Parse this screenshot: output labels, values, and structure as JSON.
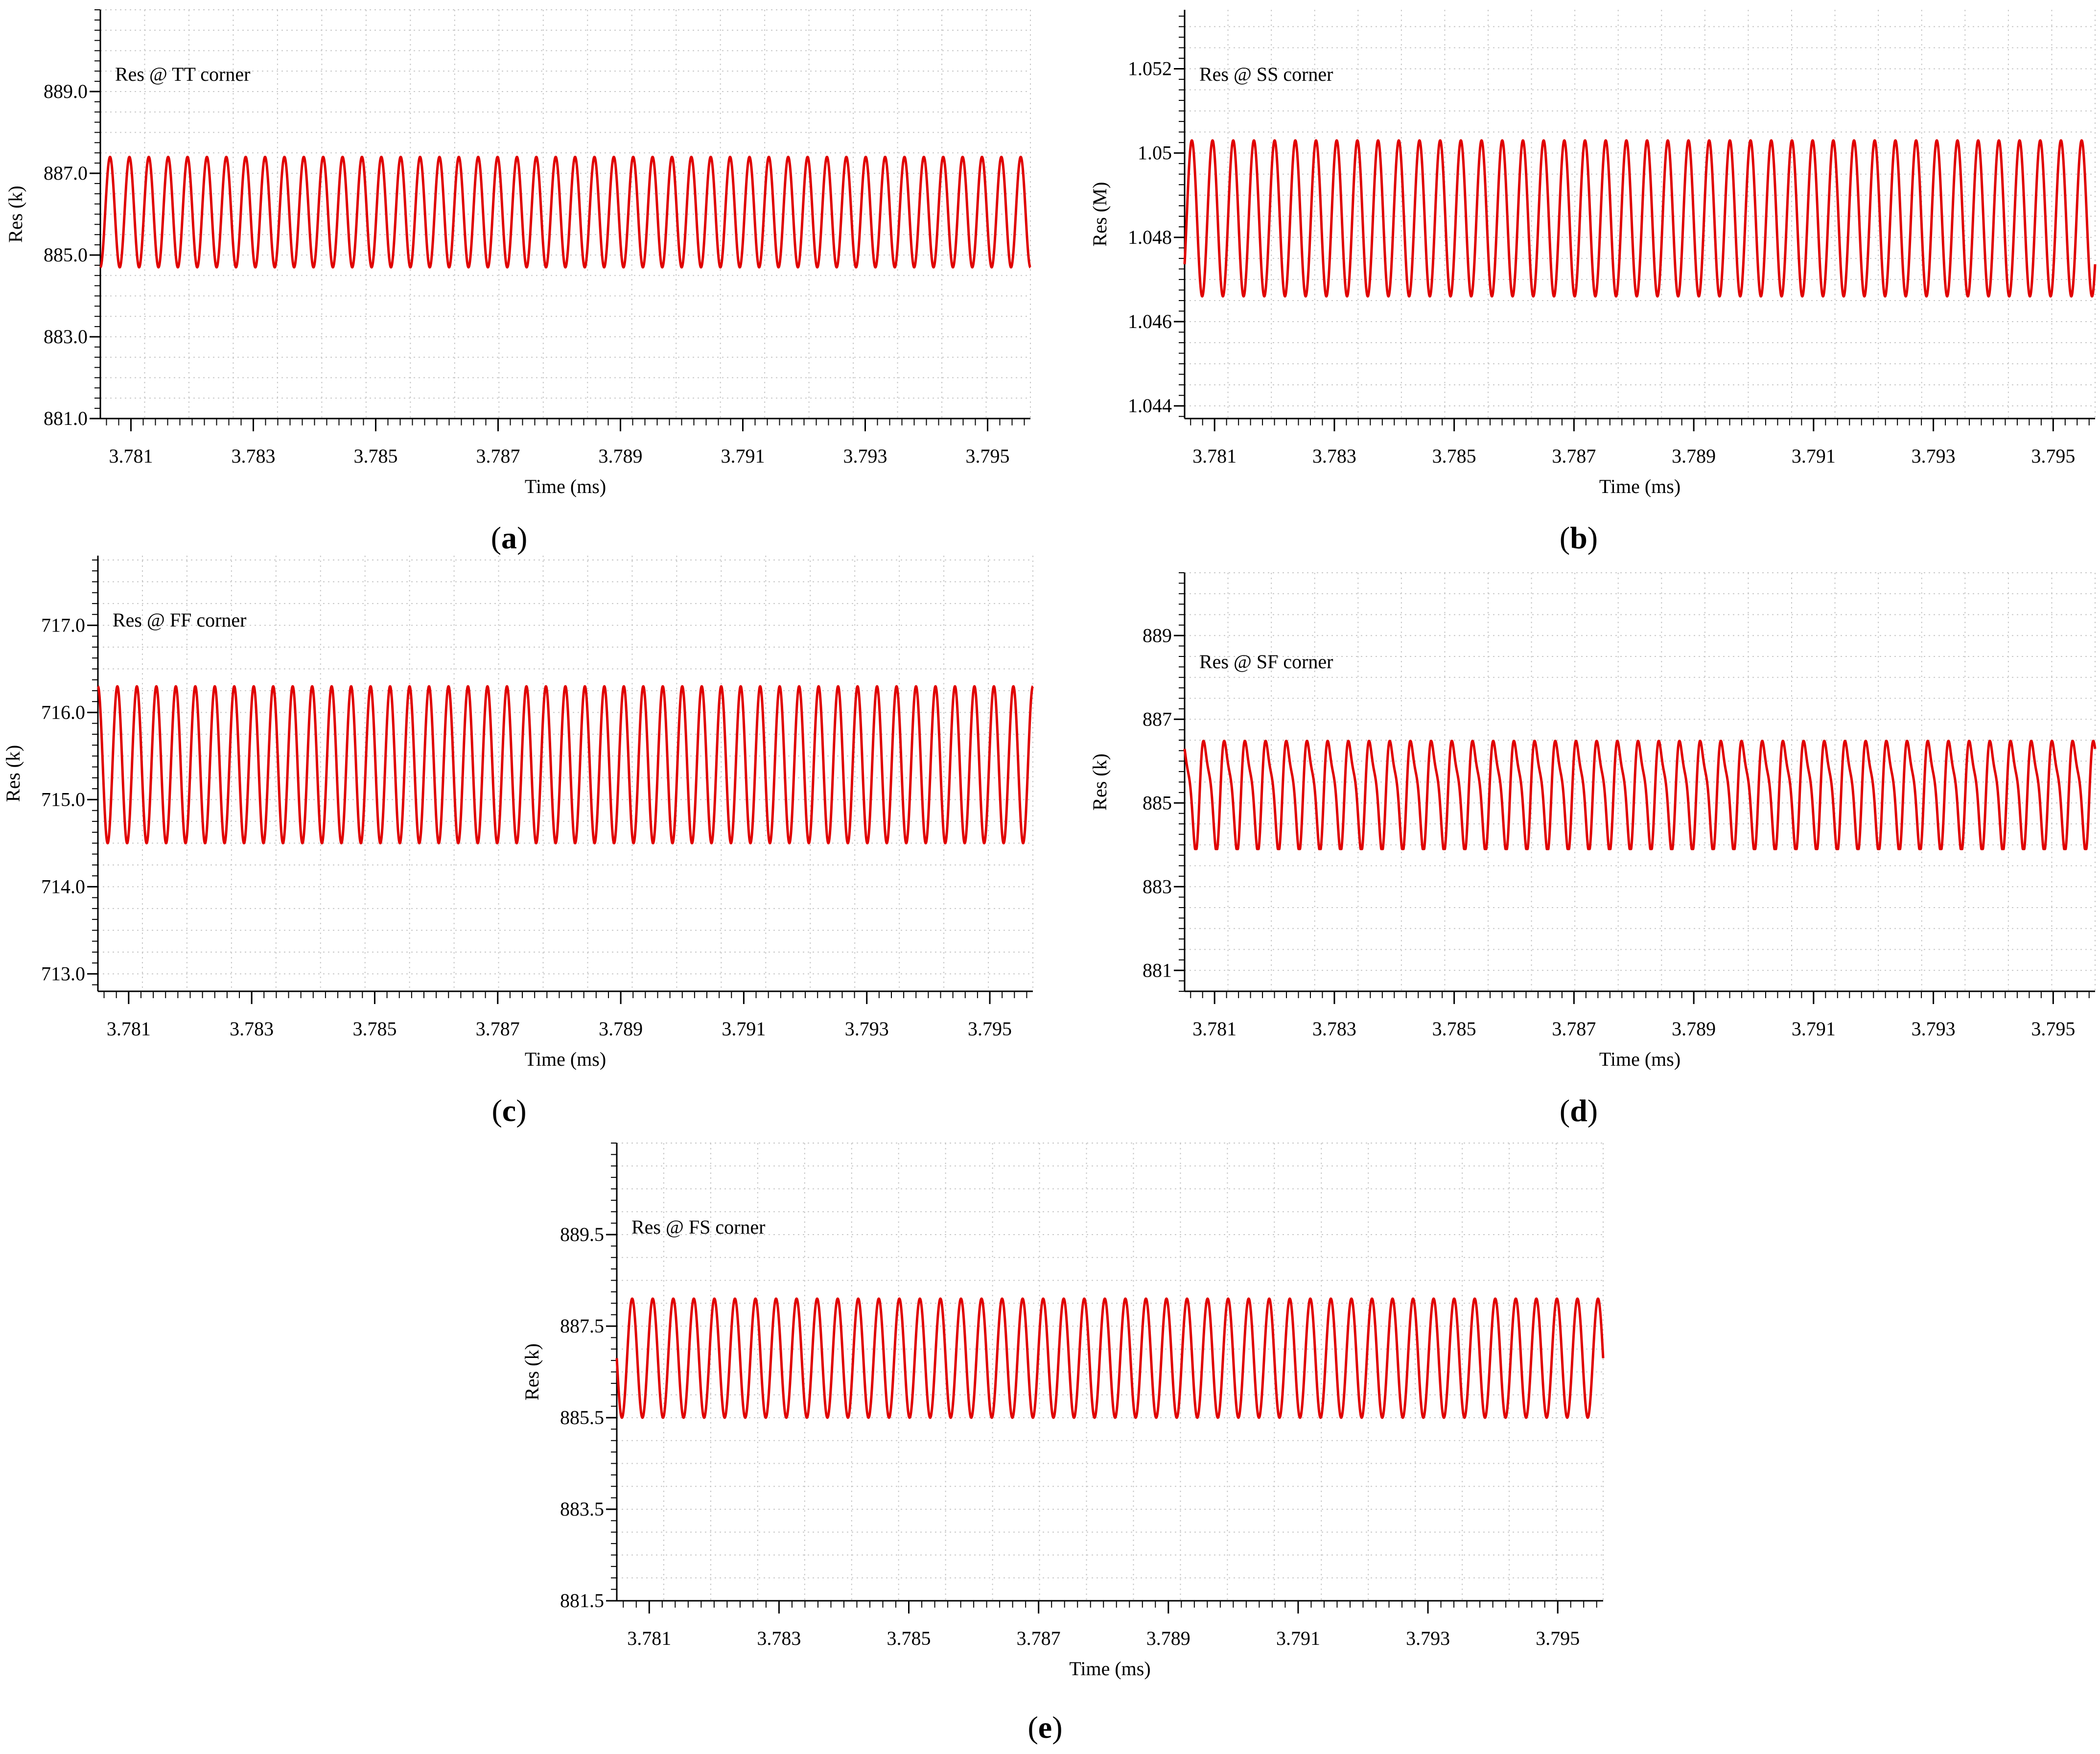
{
  "figure": {
    "caption_format": "({letter})"
  },
  "colors": {
    "trace": "#e00000",
    "grid": "#c8c8c8",
    "axis": "#000000"
  },
  "chart_data": [
    {
      "panel": "a",
      "type": "line",
      "title": "Res @ TT corner",
      "xlabel": "Time (ms)",
      "ylabel": "Res (k)",
      "xlim": [
        3.7805,
        3.7957
      ],
      "ylim": [
        881.0,
        891.0
      ],
      "xticks": [
        3.781,
        3.783,
        3.785,
        3.787,
        3.789,
        3.791,
        3.793,
        3.795
      ],
      "xtick_labels": [
        "3.781",
        "3.783",
        "3.785",
        "3.787",
        "3.789",
        "3.791",
        "3.793",
        "3.795"
      ],
      "yticks": [
        881.0,
        883.0,
        885.0,
        887.0,
        889.0
      ],
      "ytick_labels": [
        "881.0",
        "883.0",
        "885.0",
        "887.0",
        "889.0"
      ],
      "series": [
        {
          "name": "Res",
          "waveform": "sine",
          "min": 884.7,
          "max": 887.4,
          "cycles": 48,
          "start_phase": 0.75
        }
      ]
    },
    {
      "panel": "b",
      "type": "line",
      "title": "Res @ SS corner",
      "xlabel": "Time (ms)",
      "ylabel": "Res (M)",
      "xlim": [
        3.7805,
        3.7957
      ],
      "ylim": [
        1.0437,
        1.0534
      ],
      "xticks": [
        3.781,
        3.783,
        3.785,
        3.787,
        3.789,
        3.791,
        3.793,
        3.795
      ],
      "xtick_labels": [
        "3.781",
        "3.783",
        "3.785",
        "3.787",
        "3.789",
        "3.791",
        "3.793",
        "3.795"
      ],
      "yticks": [
        1.044,
        1.046,
        1.048,
        1.05,
        1.052
      ],
      "ytick_labels": [
        "1.044",
        "1.046",
        "1.048",
        "1.05",
        "1.052"
      ],
      "series": [
        {
          "name": "Res",
          "waveform": "sine",
          "min": 1.0466,
          "max": 1.0503,
          "cycles": 44,
          "start_phase": 0.9
        }
      ]
    },
    {
      "panel": "c",
      "type": "line",
      "title": "Res @ FF corner",
      "xlabel": "Time (ms)",
      "ylabel": "Res (k)",
      "xlim": [
        3.7805,
        3.7957
      ],
      "ylim": [
        712.8,
        717.8
      ],
      "xticks": [
        3.781,
        3.783,
        3.785,
        3.787,
        3.789,
        3.791,
        3.793,
        3.795
      ],
      "xtick_labels": [
        "3.781",
        "3.783",
        "3.785",
        "3.787",
        "3.789",
        "3.791",
        "3.793",
        "3.795"
      ],
      "yticks": [
        713.0,
        714.0,
        715.0,
        716.0,
        717.0
      ],
      "ytick_labels": [
        "713.0",
        "714.0",
        "715.0",
        "716.0",
        "717.0"
      ],
      "series": [
        {
          "name": "Res",
          "waveform": "sine",
          "min": 714.5,
          "max": 716.3,
          "cycles": 48,
          "start_phase": 0.25
        }
      ]
    },
    {
      "panel": "d",
      "type": "line",
      "title": "Res @ SF corner",
      "xlabel": "Time (ms)",
      "ylabel": "Res (k)",
      "xlim": [
        3.7805,
        3.7957
      ],
      "ylim": [
        880.5,
        890.5
      ],
      "xticks": [
        3.781,
        3.783,
        3.785,
        3.787,
        3.789,
        3.791,
        3.793,
        3.795
      ],
      "xtick_labels": [
        "3.781",
        "3.783",
        "3.785",
        "3.787",
        "3.789",
        "3.791",
        "3.793",
        "3.795"
      ],
      "yticks": [
        881,
        883,
        885,
        887,
        889
      ],
      "ytick_labels": [
        "881",
        "883",
        "885",
        "887",
        "889"
      ],
      "series": [
        {
          "name": "Res",
          "waveform": "skewed",
          "min": 883.9,
          "max": 886.7,
          "cycles": 44,
          "start_phase": 0.25
        }
      ]
    },
    {
      "panel": "e",
      "type": "line",
      "title": "Res @ FS corner",
      "xlabel": "Time (ms)",
      "ylabel": "Res (k)",
      "xlim": [
        3.7805,
        3.7957
      ],
      "ylim": [
        881.5,
        891.5
      ],
      "xticks": [
        3.781,
        3.783,
        3.785,
        3.787,
        3.789,
        3.791,
        3.793,
        3.795
      ],
      "xtick_labels": [
        "3.781",
        "3.783",
        "3.785",
        "3.787",
        "3.789",
        "3.791",
        "3.793",
        "3.795"
      ],
      "yticks": [
        881.5,
        883.5,
        885.5,
        887.5,
        889.5
      ],
      "ytick_labels": [
        "881.5",
        "883.5",
        "885.5",
        "887.5",
        "889.5"
      ],
      "series": [
        {
          "name": "Res",
          "waveform": "sine",
          "min": 885.5,
          "max": 888.1,
          "cycles": 48,
          "start_phase": 0.5
        }
      ]
    }
  ]
}
